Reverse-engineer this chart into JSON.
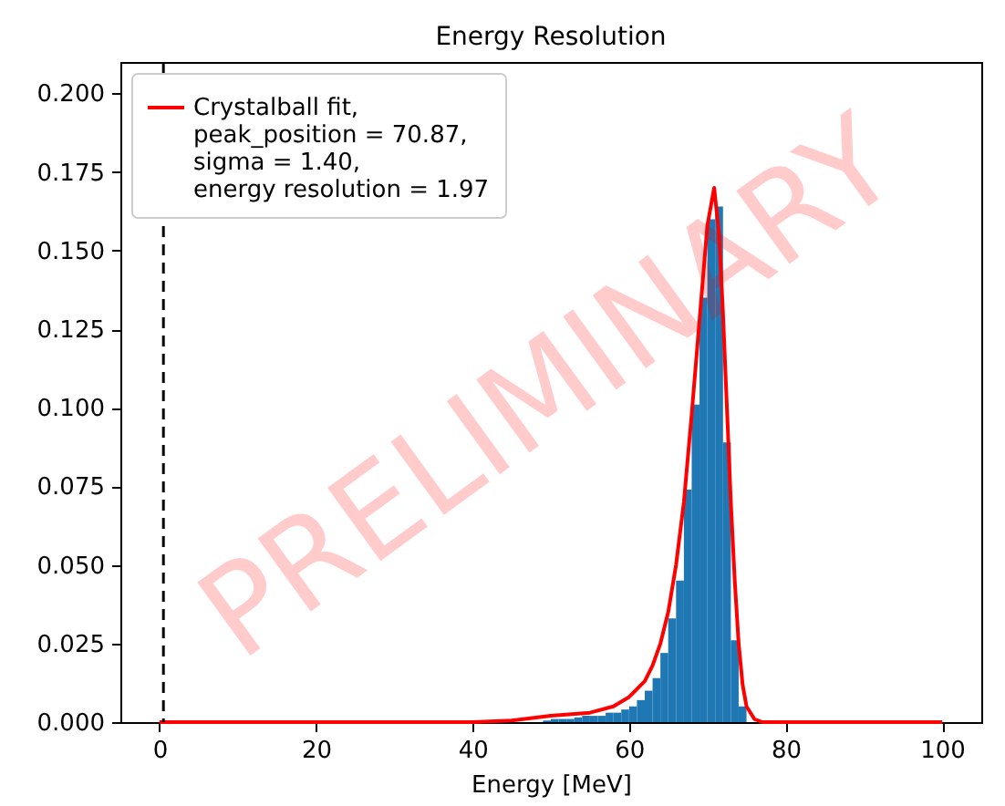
{
  "chart_data": {
    "type": "histogram",
    "title": "Energy Resolution",
    "xlabel": "Energy [MeV]",
    "bins": [
      49,
      50,
      51,
      52,
      53,
      54,
      55,
      56,
      57,
      58,
      59,
      60,
      61,
      62,
      63,
      64,
      65,
      66,
      67,
      68,
      69,
      70,
      71,
      72,
      73,
      74,
      75
    ],
    "values": [
      0.0005,
      0.001,
      0.001,
      0.001,
      0.0015,
      0.002,
      0.002,
      0.002,
      0.003,
      0.003,
      0.004,
      0.005,
      0.007,
      0.01,
      0.014,
      0.022,
      0.033,
      0.045,
      0.074,
      0.101,
      0.135,
      0.16,
      0.164,
      0.089,
      0.026,
      0.005
    ],
    "color": "#1f77b4",
    "series": [
      {
        "type": "line",
        "name": "Crystalball fit,\npeak_position = 70.87,\nsigma = 1.40,\nenergy resolution = 1.97",
        "color": "#ff0000",
        "x": [
          0,
          20,
          40,
          45,
          50,
          55,
          58,
          60,
          62,
          63,
          64,
          65,
          66,
          67,
          68,
          69,
          70,
          70.87,
          71.5,
          72,
          72.5,
          73,
          73.5,
          74,
          74.5,
          75,
          76,
          77,
          80,
          100
        ],
        "values": [
          0,
          0,
          0,
          0.0005,
          0.002,
          0.003,
          0.005,
          0.008,
          0.013,
          0.018,
          0.025,
          0.035,
          0.05,
          0.07,
          0.098,
          0.128,
          0.158,
          0.17,
          0.155,
          0.13,
          0.1,
          0.07,
          0.045,
          0.025,
          0.012,
          0.005,
          0.001,
          0,
          0,
          0
        ]
      }
    ],
    "ref_lines": [
      {
        "axis": "x",
        "value": 0.5,
        "color": "#000000",
        "line_style": "dashed"
      }
    ],
    "annotations": [
      "PRELIMINARY"
    ],
    "xlim": [
      -5,
      105
    ],
    "xticks": [
      0,
      20,
      40,
      60,
      80,
      100
    ],
    "ylim": [
      0,
      0.21
    ],
    "yticks": [
      {
        "value": 0,
        "label": "0.000"
      },
      {
        "value": 0.025,
        "label": "0.025"
      },
      {
        "value": 0.05,
        "label": "0.050"
      },
      {
        "value": 0.075,
        "label": "0.075"
      },
      {
        "value": 0.1,
        "label": "0.100"
      },
      {
        "value": 0.125,
        "label": "0.125"
      },
      {
        "value": 0.15,
        "label": "0.150"
      },
      {
        "value": 0.175,
        "label": "0.175"
      },
      {
        "value": 0.2,
        "label": "0.200"
      }
    ],
    "legend": "top left",
    "grid": false
  }
}
